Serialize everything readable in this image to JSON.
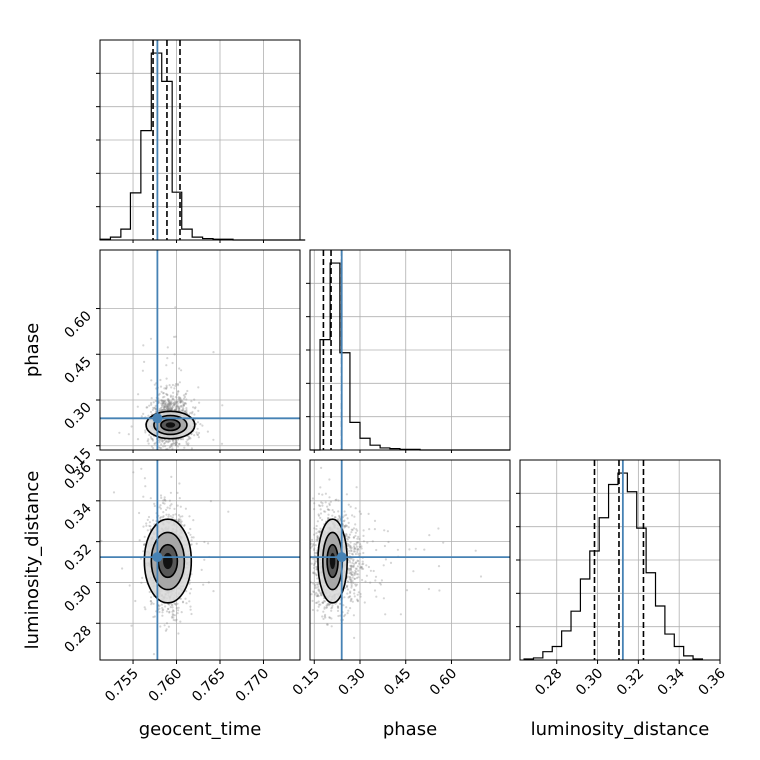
{
  "chart_data": {
    "type": "corner",
    "parameters": [
      "geocent_time",
      "phase",
      "luminosity_distance"
    ],
    "axis_labels": {
      "geocent_time": "geocent_time",
      "phase": "phase",
      "luminosity_distance": "luminosity_distance"
    },
    "ranges": {
      "geocent_time": [
        0.7512,
        0.7742
      ],
      "phase": [
        0.136,
        0.792
      ],
      "luminosity_distance": [
        0.262,
        0.36
      ]
    },
    "ticks": {
      "geocent_time": [
        0.755,
        0.76,
        0.765,
        0.77
      ],
      "phase": [
        0.15,
        0.3,
        0.45,
        0.6
      ],
      "luminosity_distance": [
        0.28,
        0.3,
        0.32,
        0.34,
        0.36
      ]
    },
    "tick_labels": {
      "geocent_time": [
        "0.755",
        "0.760",
        "0.765",
        "0.770"
      ],
      "phase": [
        "0.15",
        "0.30",
        "0.45",
        "0.60"
      ],
      "luminosity_distance": [
        "0.28",
        "0.30",
        "0.32",
        "0.34",
        "0.36"
      ]
    },
    "injection": {
      "geocent_time": 0.7578,
      "phase": 0.24,
      "luminosity_distance": 0.3124
    },
    "quantiles": {
      "geocent_time": [
        0.7573,
        0.7589,
        0.7604
      ],
      "phase": [
        0.18,
        0.205,
        0.24
      ],
      "luminosity_distance": [
        0.2985,
        0.3105,
        0.3225
      ]
    },
    "histograms": {
      "geocent_time": {
        "edges": [
          0.7512,
          0.7524,
          0.7536,
          0.7547,
          0.7559,
          0.7571,
          0.7583,
          0.7595,
          0.7606,
          0.7618,
          0.763,
          0.7642,
          0.7654,
          0.7665,
          0.7677,
          0.7689,
          0.7701,
          0.7713,
          0.7724,
          0.7736,
          0.7748
        ],
        "counts": [
          1,
          4,
          15,
          65,
          151,
          258,
          219,
          66,
          15,
          4,
          2,
          1,
          1,
          0,
          0,
          0,
          0,
          0,
          0,
          0
        ]
      },
      "phase": {
        "edges": [
          0.136,
          0.169,
          0.202,
          0.234,
          0.267,
          0.3,
          0.333,
          0.366,
          0.398,
          0.431,
          0.464,
          0.497,
          0.53,
          0.562,
          0.595,
          0.628,
          0.661,
          0.694,
          0.726,
          0.759,
          0.792
        ],
        "counts": [
          0,
          160,
          271,
          141,
          40,
          17,
          7,
          3,
          2,
          1,
          1,
          0,
          0,
          0,
          0,
          0,
          0,
          0,
          0,
          0
        ]
      },
      "luminosity_distance": {
        "edges": [
          0.264,
          0.2686,
          0.2732,
          0.2778,
          0.2824,
          0.287,
          0.2916,
          0.2962,
          0.3008,
          0.3054,
          0.31,
          0.3146,
          0.3192,
          0.3238,
          0.3284,
          0.333,
          0.3376,
          0.3422,
          0.3468,
          0.3514
        ],
        "counts": [
          1,
          2,
          8,
          13,
          28,
          47,
          78,
          105,
          137,
          169,
          180,
          162,
          127,
          84,
          52,
          25,
          13,
          4,
          1
        ]
      }
    },
    "contours": {
      "phase|geocent_time": {
        "center": [
          0.7593,
          0.218
        ],
        "radii": [
          [
            0.0011,
            0.018
          ],
          [
            0.0019,
            0.031
          ],
          [
            0.0028,
            0.045
          ]
        ]
      },
      "luminosity_distance|geocent_time": {
        "center": [
          0.759,
          0.3105
        ],
        "radii": [
          [
            0.0011,
            0.008
          ],
          [
            0.0019,
            0.014
          ],
          [
            0.0027,
            0.0205
          ]
        ]
      },
      "luminosity_distance|phase": {
        "center": [
          0.21,
          0.3105
        ],
        "radii": [
          [
            0.018,
            0.008
          ],
          [
            0.032,
            0.014
          ],
          [
            0.048,
            0.0205
          ]
        ]
      }
    },
    "grid": true,
    "colors": {
      "histogram": "#000000",
      "quantile": "#000000",
      "injection": "#4682b4",
      "contour": "#000000",
      "scatter": "#888888",
      "grid": "#b0b0b0"
    }
  }
}
